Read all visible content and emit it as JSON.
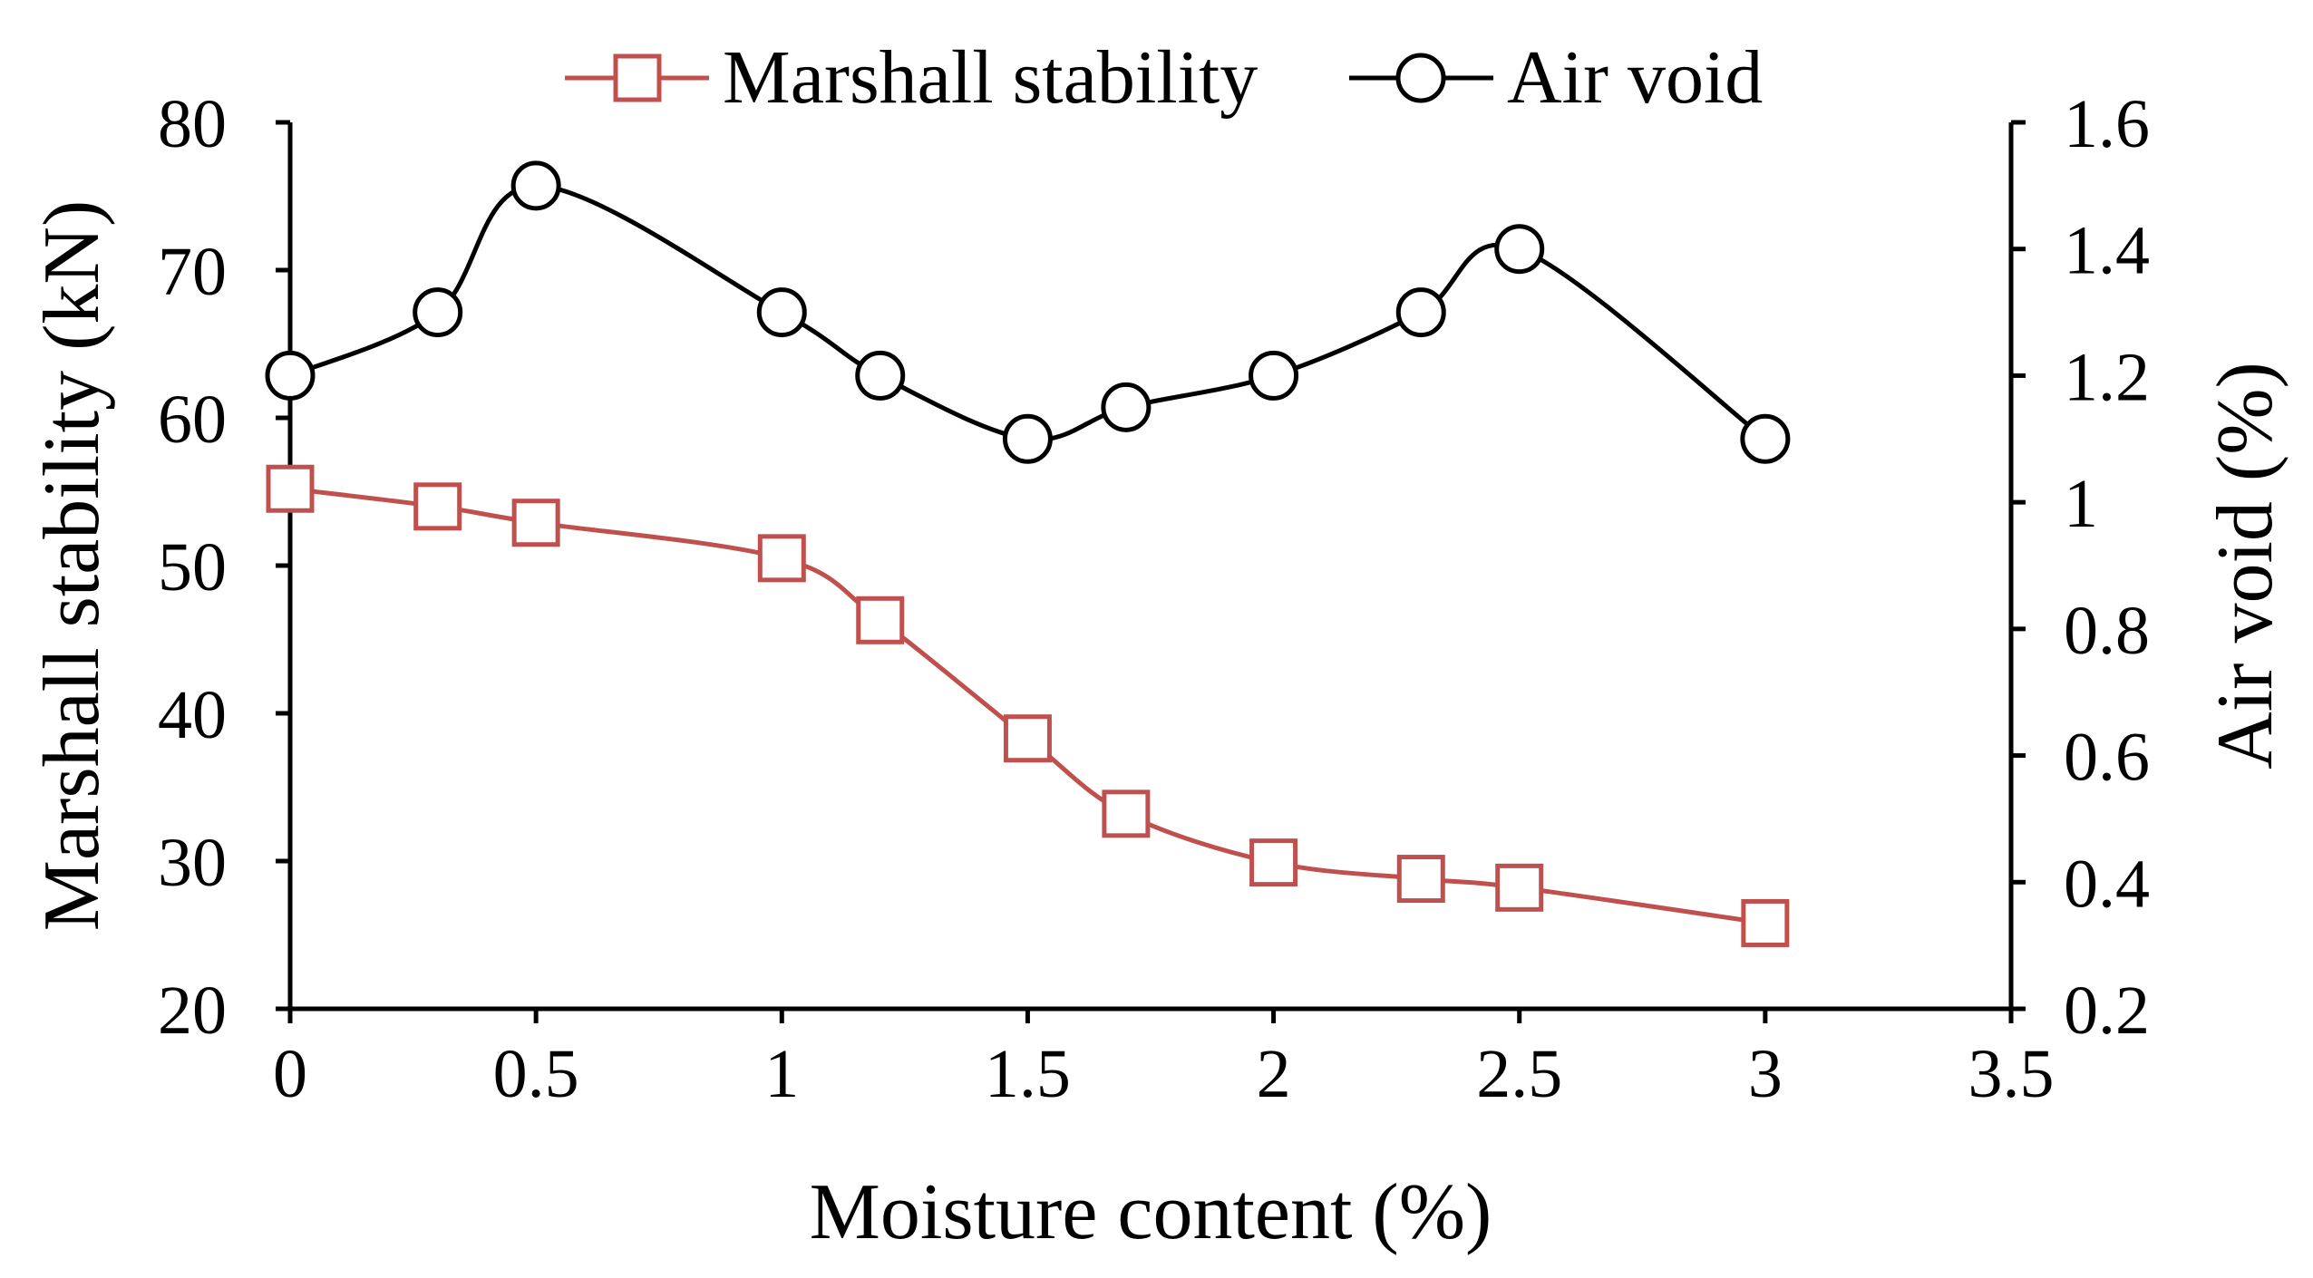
{
  "colors": {
    "stability": "#c0504d",
    "air_void": "#000000",
    "axis": "#000000",
    "background": "#ffffff"
  },
  "chart_data": {
    "type": "line",
    "title": "",
    "xlabel": "Moisture content (%)",
    "ylabel": "Marshall stability (kN)",
    "y2label": "Air void (%)",
    "xlim": [
      0,
      3.5
    ],
    "ylim": [
      20,
      80
    ],
    "y2lim": [
      0.2,
      1.6
    ],
    "xticks": [
      "0",
      "0.5",
      "1",
      "1.5",
      "2",
      "2.5",
      "3",
      "3.5"
    ],
    "xtick_values": [
      0,
      0.5,
      1,
      1.5,
      2,
      2.5,
      3,
      3.5
    ],
    "yticks": [
      "20",
      "30",
      "40",
      "50",
      "60",
      "70",
      "80"
    ],
    "ytick_values": [
      20,
      30,
      40,
      50,
      60,
      70,
      80
    ],
    "y2ticks": [
      "0.2",
      "0.4",
      "0.6",
      "0.8",
      "1",
      "1.2",
      "1.4",
      "1.6"
    ],
    "y2tick_values": [
      0.2,
      0.4,
      0.6,
      0.8,
      1.0,
      1.2,
      1.4,
      1.6
    ],
    "grid": false,
    "legend_position": "top-center",
    "series": [
      {
        "name": "Marshall stability",
        "axis": "left",
        "marker": "square",
        "x": [
          0,
          0.3,
          0.5,
          1,
          1.2,
          1.5,
          1.7,
          2,
          2.3,
          2.5,
          3
        ],
        "y": [
          55.2,
          54.0,
          52.9,
          50.5,
          46.3,
          38.3,
          33.2,
          29.9,
          28.8,
          28.2,
          25.8
        ]
      },
      {
        "name": "Air void",
        "axis": "right",
        "marker": "circle",
        "x": [
          0,
          0.3,
          0.5,
          1,
          1.2,
          1.5,
          1.7,
          2,
          2.3,
          2.5,
          3
        ],
        "y": [
          1.2,
          1.3,
          1.5,
          1.3,
          1.2,
          1.1,
          1.15,
          1.2,
          1.3,
          1.4,
          1.1
        ]
      }
    ]
  }
}
